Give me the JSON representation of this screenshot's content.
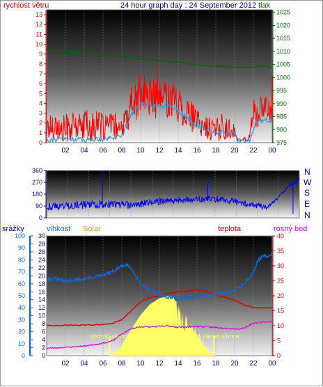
{
  "colors": {
    "wind": "#ff0000",
    "gust": "#3399dd",
    "pressure": "#006600",
    "direction": "#0000ff",
    "rain": "#0066cc",
    "humidity": "#1166dd",
    "solar": "#ffff66",
    "temperature": "#dd0000",
    "dewpoint": "#dd00dd",
    "title": "#000080",
    "solar_label": "#d4a000",
    "sun_label": "#ffff66"
  },
  "chart_data": [
    {
      "type": "line",
      "title": "24 hour graph day : 24 September 2012",
      "left_label": "rychlost větru",
      "right_label": "tlak",
      "x_ticks": [
        "02",
        "04",
        "06",
        "08",
        "10",
        "12",
        "14",
        "16",
        "18",
        "20",
        "22",
        "00"
      ],
      "y_left_ticks": [
        "0",
        "1",
        "2",
        "3",
        "4",
        "5",
        "6",
        "7",
        "8",
        "9",
        "10",
        "11",
        "12",
        "13"
      ],
      "y_right_ticks": [
        "975",
        "980",
        "985",
        "990",
        "995",
        "1000",
        "1005",
        "1010",
        "1015",
        "1020",
        "1025"
      ],
      "ylim_left": [
        0,
        13.5
      ],
      "ylim_right": [
        975,
        1026
      ],
      "series": [
        {
          "key": "wind",
          "axis": "left",
          "style": "noisy",
          "x": [
            0,
            1,
            1.5,
            2,
            3,
            4,
            5,
            6,
            7,
            7.5,
            8,
            9,
            10,
            11,
            12,
            13,
            14,
            15,
            16,
            17,
            18,
            19,
            20,
            20.2,
            21,
            21.5,
            22,
            23,
            24
          ],
          "y": [
            1.5,
            1.8,
            1.0,
            1.5,
            1.6,
            1.7,
            1.5,
            1.6,
            1.8,
            1.2,
            1.3,
            3.5,
            5.0,
            4.7,
            4.2,
            4.6,
            4.0,
            3.0,
            2.1,
            1.5,
            1.4,
            1.3,
            1.5,
            0.3,
            0.3,
            0.4,
            3.0,
            3.2,
            3.4
          ],
          "noise": [
            1.5,
            1.5,
            1.5,
            1.5,
            1.5,
            1.5,
            1.5,
            1.5,
            1.2,
            1.0,
            1.0,
            1.8,
            2.3,
            2.0,
            2.0,
            2.0,
            2.0,
            1.8,
            1.4,
            1.2,
            1.2,
            1.2,
            1.0,
            0.2,
            0.2,
            0.2,
            1.5,
            1.5,
            1.5
          ]
        },
        {
          "key": "gust",
          "axis": "left",
          "style": "smooth",
          "x": [
            0,
            2,
            4,
            6,
            7,
            8,
            9,
            10,
            11,
            12,
            13,
            14,
            15,
            16,
            17,
            18,
            19,
            20,
            20.3,
            21,
            21.7,
            22.2,
            23,
            24
          ],
          "y": [
            0.3,
            0.4,
            0.3,
            0.4,
            0.5,
            0.7,
            2.9,
            4.1,
            3.9,
            3.6,
            3.8,
            3.3,
            2.5,
            1.7,
            1.3,
            1.1,
            1.0,
            1.1,
            0.2,
            0.2,
            0.3,
            2.1,
            2.2,
            2.4
          ]
        },
        {
          "key": "pressure",
          "axis": "right",
          "style": "step",
          "x": [
            0,
            1,
            2,
            4,
            6,
            8,
            10,
            12,
            14,
            16,
            18,
            19,
            20,
            22,
            23,
            24
          ],
          "y": [
            1010.8,
            1010.2,
            1009.7,
            1009.5,
            1008.7,
            1007.9,
            1007.2,
            1006.6,
            1005.9,
            1004.7,
            1004.4,
            1004.2,
            1004.0,
            1003.9,
            1004.5,
            1003.9
          ]
        }
      ]
    },
    {
      "type": "scatter",
      "x_ticks": [],
      "y_left_ticks": [
        "0",
        "90",
        "180",
        "270",
        "360"
      ],
      "y_right_ticks": [
        "N",
        "W",
        "S",
        "E",
        "N"
      ],
      "ylim_left": [
        0,
        360
      ],
      "series": [
        {
          "key": "direction",
          "style": "noisy",
          "x": [
            0,
            2,
            4,
            6,
            8,
            10,
            12,
            14,
            16,
            18,
            20,
            21,
            21.7,
            22,
            23,
            24
          ],
          "y": [
            85,
            95,
            100,
            105,
            95,
            120,
            135,
            140,
            145,
            120,
            95,
            80,
            130,
            155,
            240,
            295
          ],
          "noise": [
            30,
            30,
            30,
            30,
            30,
            25,
            25,
            25,
            25,
            25,
            25,
            15,
            10,
            10,
            10,
            25
          ]
        }
      ]
    },
    {
      "type": "line",
      "left_labels": [
        "srážky",
        "vlhkost",
        "Solar"
      ],
      "right_labels": [
        "teplota",
        "rosný bod"
      ],
      "annotations": [
        "východ slunce",
        "západ slunce"
      ],
      "x_ticks": [
        "02",
        "04",
        "06",
        "08",
        "10",
        "12",
        "14",
        "16",
        "18",
        "20",
        "22",
        "00"
      ],
      "y_rain_ticks": [
        "0",
        "2",
        "4",
        "6",
        "8",
        "10",
        "12",
        "14",
        "16",
        "18",
        "20",
        "22",
        "24",
        "26",
        "28",
        "30"
      ],
      "y_humidity_ticks": [
        "0",
        "10",
        "20",
        "30",
        "40",
        "50",
        "60",
        "70",
        "80",
        "90",
        "100"
      ],
      "y_right_ticks": [
        "0",
        "5",
        "10",
        "15",
        "20",
        "25",
        "30",
        "35",
        "40"
      ],
      "ylim_humidity": [
        0,
        100
      ],
      "ylim_rain": [
        0,
        30
      ],
      "ylim_right": [
        0,
        40
      ],
      "series": [
        {
          "key": "solar",
          "axis": "humidity",
          "style": "area",
          "x": [
            0,
            6.7,
            7.2,
            7.8,
            8.3,
            9,
            10,
            11,
            12,
            12.5,
            13,
            13.4,
            13.8,
            14.2,
            14.6,
            15,
            15.5,
            16,
            16.5,
            16.9,
            17.3,
            17.8,
            24
          ],
          "y": [
            0,
            0,
            2,
            6,
            13,
            22,
            34,
            43,
            48,
            49,
            50,
            49,
            47,
            42,
            36,
            31,
            27,
            24,
            16,
            9,
            3,
            0,
            0
          ]
        },
        {
          "key": "humidity",
          "axis": "humidity",
          "style": "smooth",
          "x": [
            0,
            1,
            2,
            4,
            6,
            7,
            8,
            8.7,
            9.3,
            10,
            11,
            12,
            13,
            14,
            15,
            16,
            17,
            18,
            19,
            20,
            21,
            22,
            22.5,
            23,
            24
          ],
          "y": [
            64,
            64,
            62,
            64,
            67,
            70,
            75,
            75,
            70,
            60,
            55,
            51,
            49,
            47,
            48,
            49,
            50,
            51,
            52,
            55,
            60,
            69,
            80,
            83,
            84
          ],
          "noise": [
            1.5,
            1.5,
            1.5,
            1.5,
            1.5,
            1.5,
            1.5,
            1.5,
            1.5,
            1.5,
            1.5,
            1.5,
            1.5,
            1.5,
            1.5,
            1.5,
            1.5,
            1.5,
            1.5,
            1.5,
            1.5,
            1.5,
            1.5,
            1.5,
            1.5
          ]
        },
        {
          "key": "temperature",
          "axis": "right",
          "style": "smooth",
          "x": [
            0,
            1,
            2,
            4,
            6,
            7,
            8,
            9,
            10,
            11,
            12,
            13,
            14,
            15,
            16,
            17,
            18,
            19,
            20,
            21,
            22,
            23,
            24
          ],
          "y": [
            10.1,
            10,
            10.2,
            10.2,
            10.4,
            10.8,
            12,
            15,
            18,
            19.5,
            20,
            20.8,
            21.3,
            21.5,
            22,
            21.5,
            20.2,
            19.5,
            18.5,
            17,
            16,
            16,
            16
          ],
          "noise": [
            0.15,
            0.15,
            0.15,
            0.15,
            0.15,
            0.15,
            0.15,
            0.15,
            0.15,
            0.15,
            0.15,
            0.15,
            0.15,
            0.15,
            0.15,
            0.15,
            0.15,
            0.15,
            0.15,
            0.15,
            0.15,
            0.15,
            0.15
          ]
        },
        {
          "key": "dewpoint",
          "axis": "right",
          "style": "smooth",
          "x": [
            0,
            1,
            2,
            4,
            6,
            7,
            8,
            9,
            10,
            11,
            12,
            13,
            14,
            15,
            16,
            17,
            18,
            19,
            20,
            20.5,
            21,
            22,
            23,
            24
          ],
          "y": [
            2.5,
            2.6,
            2.8,
            3.2,
            4.2,
            4.9,
            7.2,
            9,
            9.7,
            9.6,
            9.8,
            9.9,
            9.5,
            9.6,
            9.8,
            9.6,
            9.4,
            9.2,
            9.0,
            8.9,
            9.3,
            10.8,
            11.2,
            11.5
          ],
          "noise": [
            0.2,
            0.2,
            0.2,
            0.2,
            0.2,
            0.2,
            0.2,
            0.2,
            0.25,
            0.25,
            0.25,
            0.25,
            0.25,
            0.25,
            0.25,
            0.25,
            0.25,
            0.25,
            0.25,
            0.25,
            0.25,
            0.25,
            0.25,
            0.25
          ]
        }
      ]
    }
  ]
}
